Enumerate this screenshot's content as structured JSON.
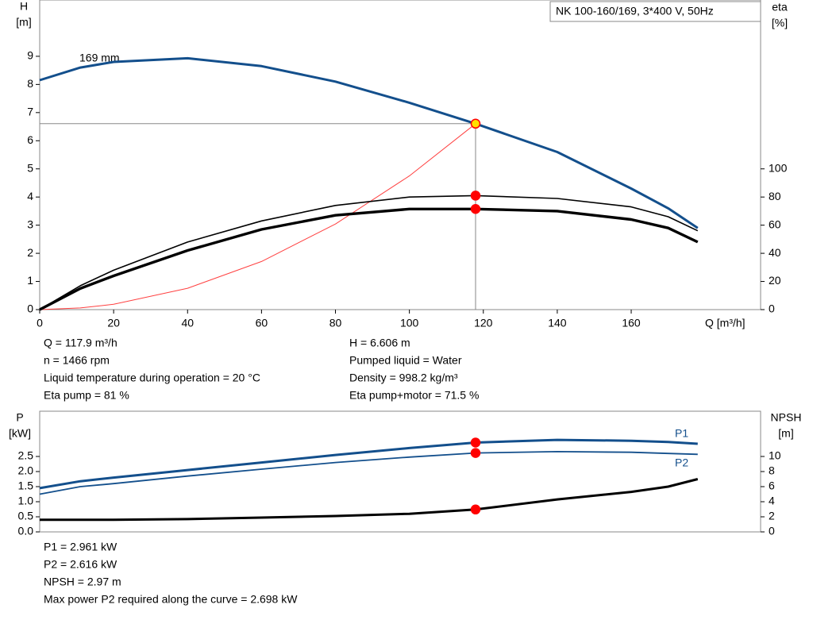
{
  "chart_data": [
    {
      "type": "line",
      "title": "NK 100-160/169, 3*400 V, 50Hz",
      "x_label": "Q [m³/h]",
      "y_label": "H",
      "y_unit": "[m]",
      "y2_label": "eta",
      "y2_unit": "[%]",
      "curve_label": "169 mm",
      "x": [
        0,
        11,
        20,
        40,
        60,
        80,
        100,
        117.9,
        140,
        160,
        170,
        178
      ],
      "xlim": [
        0,
        195
      ],
      "xticks": [
        0,
        20,
        40,
        60,
        80,
        100,
        120,
        140,
        160
      ],
      "ylim": [
        0,
        11
      ],
      "yticks": [
        0,
        1,
        2,
        3,
        4,
        5,
        6,
        7,
        8,
        9
      ],
      "y2lim": [
        0,
        220
      ],
      "y2ticks": [
        0,
        20,
        40,
        60,
        80,
        100
      ],
      "operating_q": 117.9,
      "series": [
        {
          "color": "#134f8c",
          "line_width": 3,
          "marker_fill": "#ffe000",
          "values": [
            8.15,
            8.6,
            8.8,
            8.93,
            8.65,
            8.1,
            7.35,
            6.606,
            5.6,
            4.3,
            3.6,
            2.9
          ]
        },
        {
          "color": "#ff4040",
          "line_width": 1,
          "values": [
            0,
            0.06,
            0.19,
            0.76,
            1.71,
            3.04,
            4.75,
            6.606,
            null,
            null,
            null,
            null
          ]
        },
        {
          "color": "#000000",
          "line_width": 1.6,
          "axis": "y2",
          "marker_fill": "#ff0000",
          "values": [
            0,
            17,
            28,
            48,
            63,
            74,
            80,
            81,
            79,
            73,
            66,
            56
          ]
        },
        {
          "color": "#000000",
          "line_width": 3.4,
          "axis": "y2",
          "marker_fill": "#ff0000",
          "values": [
            0,
            15,
            24,
            42,
            57,
            67,
            71.5,
            71.5,
            70,
            64,
            58,
            48
          ]
        }
      ],
      "info": [
        [
          "Q = 117.9 m³/h",
          "n = 1466 rpm",
          "Liquid temperature during operation = 20 °C",
          "Eta pump = 81 %"
        ],
        [
          "H = 6.606 m",
          "Pumped liquid = Water",
          "Density = 998.2 kg/m³",
          "Eta pump+motor = 71.5 %"
        ]
      ]
    },
    {
      "type": "line",
      "y_label": "P",
      "y_unit": "[kW]",
      "y2_label": "NPSH",
      "y2_unit": "[m]",
      "x": [
        0,
        11,
        20,
        40,
        60,
        80,
        100,
        117.9,
        140,
        160,
        170,
        178
      ],
      "xlim": [
        0,
        195
      ],
      "ylim": [
        0,
        4
      ],
      "yticks": [
        {
          "value": 0,
          "label": "0.0"
        },
        0.5,
        {
          "value": 1,
          "label": "1.0"
        },
        1.5,
        {
          "value": 2,
          "label": "2.0"
        },
        2.5
      ],
      "y2lim": [
        0,
        16
      ],
      "y2ticks": [
        0,
        2,
        4,
        6,
        8,
        10
      ],
      "operating_q": 117.9,
      "series": [
        {
          "name": "P1",
          "color": "#134f8c",
          "line_width": 3,
          "marker_fill": "#ff0000",
          "values": [
            1.45,
            1.68,
            1.8,
            2.05,
            2.3,
            2.55,
            2.78,
            2.961,
            3.05,
            3.02,
            2.98,
            2.92
          ]
        },
        {
          "name": "P2",
          "color": "#134f8c",
          "line_width": 1.8,
          "marker_fill": "#ff0000",
          "values": [
            1.25,
            1.5,
            1.6,
            1.85,
            2.08,
            2.3,
            2.48,
            2.616,
            2.66,
            2.64,
            2.6,
            2.57
          ]
        },
        {
          "color": "#000000",
          "line_width": 3,
          "axis": "y2",
          "marker_fill": "#ff0000",
          "values": [
            1.6,
            1.6,
            1.6,
            1.7,
            1.9,
            2.1,
            2.4,
            2.97,
            4.3,
            5.3,
            6.0,
            7.0
          ]
        }
      ],
      "info": [
        [
          "P1 = 2.961 kW",
          "P2 = 2.616 kW",
          "NPSH = 2.97 m",
          "Max power P2 required along the curve = 2.698 kW"
        ]
      ]
    }
  ]
}
